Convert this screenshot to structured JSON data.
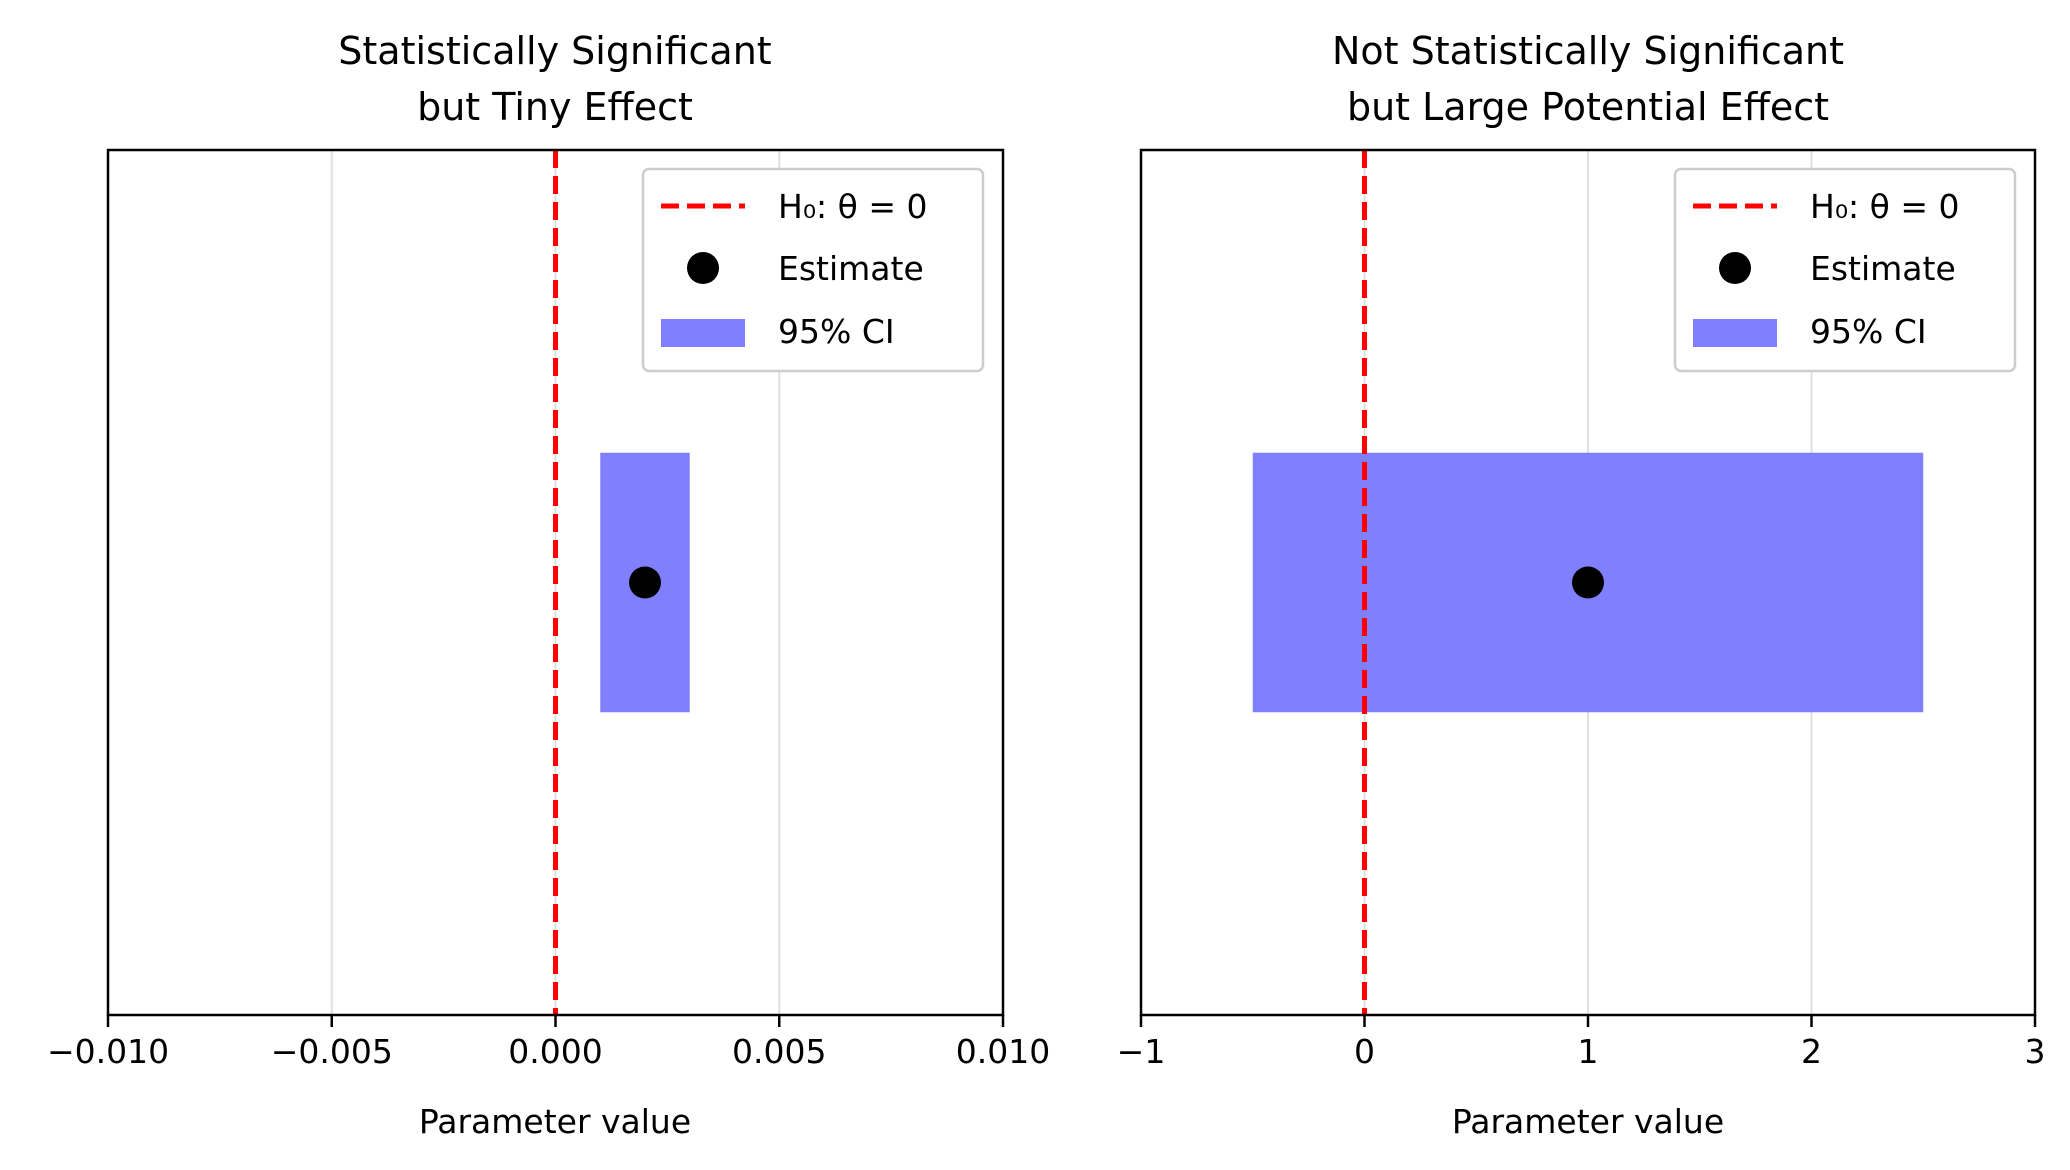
{
  "colors": {
    "null_line": "#ff0000",
    "estimate": "#000000",
    "ci_fill": "#8080ff",
    "grid": "#e0e0e0",
    "axes": "#000000"
  },
  "chart_data": [
    {
      "type": "forest",
      "title_lines": [
        "Statistically Significant",
        "but Tiny Effect"
      ],
      "xlabel": "Parameter value",
      "xlim": [
        -0.01,
        0.01
      ],
      "xticks": [
        -0.01,
        -0.005,
        0.0,
        0.005,
        0.01
      ],
      "xtick_labels": [
        "−0.010",
        "−0.005",
        "0.000",
        "0.005",
        "0.010"
      ],
      "grid": "x",
      "null_value": 0,
      "estimate": 0.002,
      "ci": [
        0.001,
        0.003
      ],
      "legend_position": "top-right",
      "legend": [
        "H₀: θ = 0",
        "Estimate",
        "95% CI"
      ]
    },
    {
      "type": "forest",
      "title_lines": [
        "Not Statistically Significant",
        "but Large Potential Effect"
      ],
      "xlabel": "Parameter value",
      "xlim": [
        -1,
        3
      ],
      "xticks": [
        -1,
        0,
        1,
        2,
        3
      ],
      "xtick_labels": [
        "−1",
        "0",
        "1",
        "2",
        "3"
      ],
      "grid": "x",
      "null_value": 0,
      "estimate": 1.0,
      "ci": [
        -0.5,
        2.5
      ],
      "legend_position": "top-right",
      "legend": [
        "H₀: θ = 0",
        "Estimate",
        "95% CI"
      ]
    }
  ]
}
